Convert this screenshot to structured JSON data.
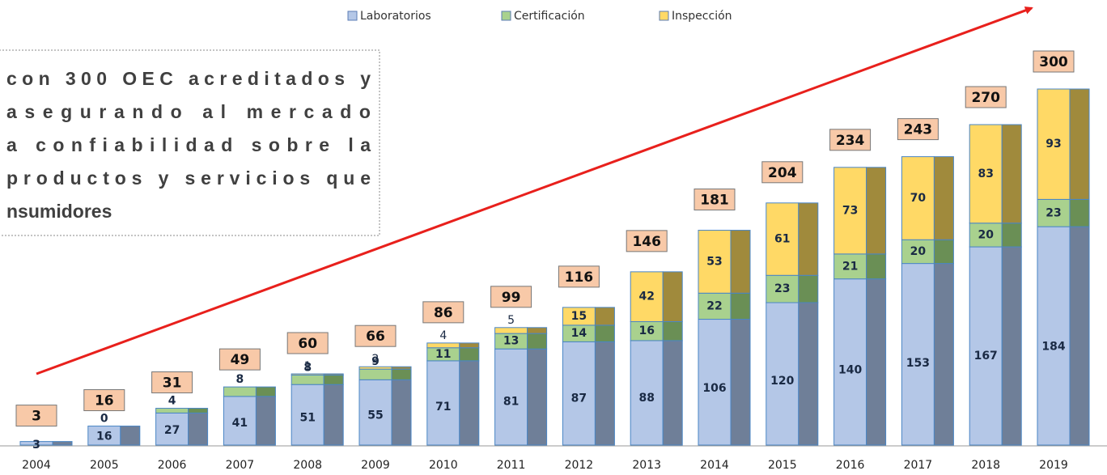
{
  "chart_data": {
    "type": "stacked_bar",
    "categories": [
      "2004",
      "2005",
      "2006",
      "2007",
      "2008",
      "2009",
      "2010",
      "2011",
      "2012",
      "2013",
      "2014",
      "2015",
      "2016",
      "2017",
      "2018",
      "2019"
    ],
    "series": [
      {
        "name": "Laboratorios",
        "color": "#b4c7e7",
        "side_color": "#6f7f98",
        "values": [
          3,
          16,
          27,
          41,
          51,
          55,
          71,
          81,
          87,
          88,
          106,
          120,
          140,
          153,
          167,
          184
        ]
      },
      {
        "name": "Certificación",
        "color": "#a9d18e",
        "side_color": "#6a8f55",
        "values": [
          null,
          0,
          4,
          8,
          8,
          9,
          11,
          13,
          14,
          16,
          22,
          23,
          21,
          20,
          20,
          23
        ]
      },
      {
        "name": "Inspección",
        "color": "#ffd966",
        "side_color": "#a08a3c",
        "values": [
          null,
          null,
          null,
          null,
          1,
          2,
          4,
          5,
          15,
          42,
          53,
          61,
          73,
          70,
          83,
          93
        ]
      }
    ],
    "totals": [
      3,
      16,
      31,
      49,
      60,
      66,
      86,
      99,
      116,
      146,
      181,
      204,
      234,
      243,
      270,
      300
    ],
    "ylim": [
      0,
      300
    ],
    "annotation": [
      "con 300 OEC acreditados y",
      "asegurando al mercado",
      "a confiabilidad sobre la",
      "productos y servicios que",
      "nsumidores"
    ]
  }
}
